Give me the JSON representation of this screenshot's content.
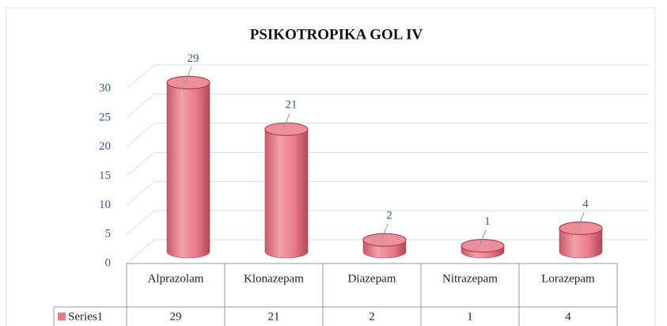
{
  "chart_data": {
    "type": "bar",
    "title": "PSIKOTROPIKA GOL IV",
    "categories": [
      "Alprazolam",
      "Klonazepam",
      "Diazepam",
      "Nitrazepam",
      "Lorazepam"
    ],
    "series": [
      {
        "name": "Series1",
        "color": "#e8788a",
        "values": [
          29,
          21,
          2,
          1,
          4
        ]
      }
    ],
    "ylim": [
      0,
      30
    ],
    "yticks": [
      0,
      5,
      10,
      15,
      20,
      25,
      30
    ],
    "grid": true
  }
}
